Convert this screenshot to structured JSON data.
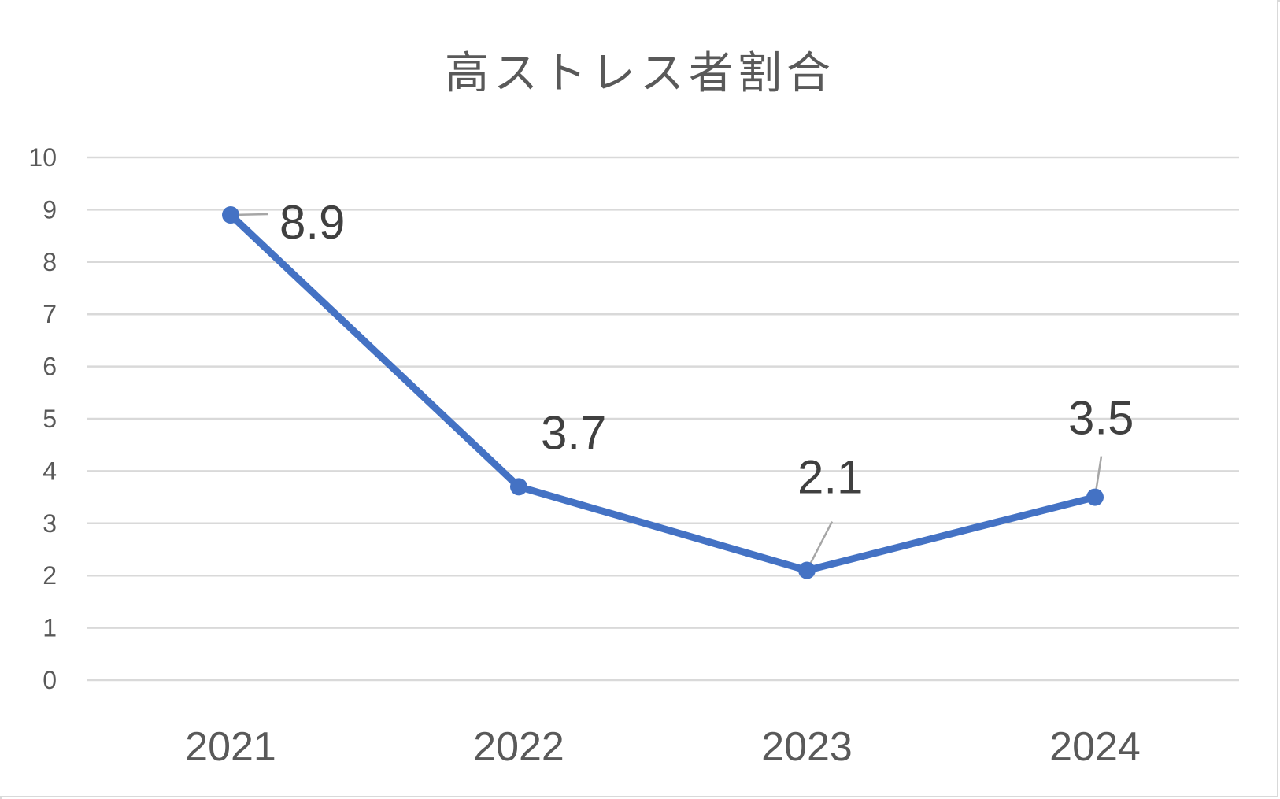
{
  "chart_data": {
    "type": "line",
    "title": "高ストレス者割合",
    "categories": [
      "2021",
      "2022",
      "2023",
      "2024"
    ],
    "series": [
      {
        "name": "高ストレス者割合",
        "values": [
          8.9,
          3.7,
          2.1,
          3.5
        ],
        "color": "#4472c4"
      }
    ],
    "data_labels": [
      "8.9",
      "3.7",
      "2.1",
      "3.5"
    ],
    "xlabel": "",
    "ylabel": "",
    "ylim": [
      0,
      10
    ],
    "yticks": [
      "0",
      "1",
      "2",
      "3",
      "4",
      "5",
      "6",
      "7",
      "8",
      "9",
      "10"
    ],
    "grid": true,
    "legend": "none"
  },
  "colors": {
    "line": "#4472c4",
    "grid": "#d9d9d9",
    "text": "#595959",
    "label": "#404040",
    "leader": "#a6a6a6"
  }
}
